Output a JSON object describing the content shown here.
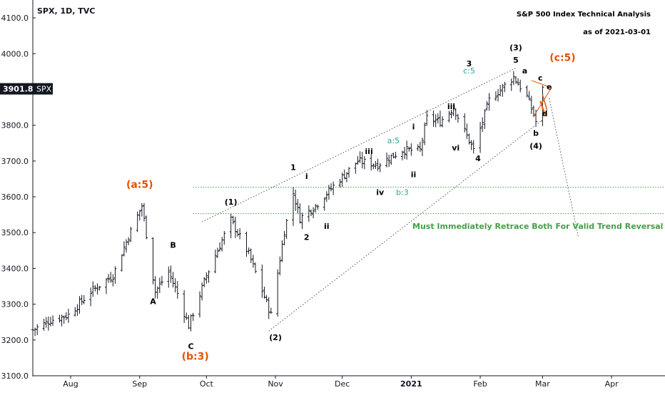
{
  "chart_data": {
    "type": "ohlc",
    "title": "S&P 500 Index Technical Analysis",
    "subtitle": "as of 2021-03-01",
    "symbol_header": "SPX, 1D, TVC",
    "price_badge": {
      "value": "3901.8",
      "label": "SPX",
      "price": 3901.8
    },
    "y_axis": {
      "min": 3100,
      "max": 4150,
      "ticks": [
        "3100.0",
        "3200.0",
        "3300.0",
        "3400.0",
        "3500.0",
        "3600.0",
        "3700.0",
        "3800.0",
        "3900.0",
        "4000.0",
        "4100.0"
      ]
    },
    "x_axis": {
      "start": "2020-07-15",
      "end": "2021-04-25",
      "ticks": [
        {
          "label": "Aug",
          "date": "2020-08-01"
        },
        {
          "label": "Sep",
          "date": "2020-09-01"
        },
        {
          "label": "Oct",
          "date": "2020-10-01"
        },
        {
          "label": "Nov",
          "date": "2020-11-01"
        },
        {
          "label": "Dec",
          "date": "2020-12-01"
        },
        {
          "label": "2021",
          "date": "2021-01-01"
        },
        {
          "label": "Feb",
          "date": "2021-02-01"
        },
        {
          "label": "Mar",
          "date": "2021-03-01"
        },
        {
          "label": "Apr",
          "date": "2021-04-01"
        }
      ]
    },
    "anchors": [
      [
        "2020-07-15",
        3228
      ],
      [
        "2020-07-23",
        3255
      ],
      [
        "2020-07-31",
        3270
      ],
      [
        "2020-08-10",
        3335
      ],
      [
        "2020-08-20",
        3380
      ],
      [
        "2020-08-27",
        3490
      ],
      [
        "2020-09-02",
        3575
      ],
      [
        "2020-09-08",
        3335
      ],
      [
        "2020-09-14",
        3390
      ],
      [
        "2020-09-18",
        3330
      ],
      [
        "2020-09-23",
        3240
      ],
      [
        "2020-10-01",
        3380
      ],
      [
        "2020-10-12",
        3535
      ],
      [
        "2020-10-20",
        3440
      ],
      [
        "2020-10-30",
        3270
      ],
      [
        "2020-11-05",
        3505
      ],
      [
        "2020-11-09",
        3610
      ],
      [
        "2020-11-12",
        3540
      ],
      [
        "2020-11-19",
        3575
      ],
      [
        "2020-11-27",
        3630
      ],
      [
        "2020-12-08",
        3700
      ],
      [
        "2020-12-17",
        3690
      ],
      [
        "2020-12-28",
        3730
      ],
      [
        "2021-01-05",
        3730
      ],
      [
        "2021-01-08",
        3820
      ],
      [
        "2021-01-14",
        3810
      ],
      [
        "2021-01-20",
        3850
      ],
      [
        "2021-01-29",
        3730
      ],
      [
        "2021-02-05",
        3870
      ],
      [
        "2021-02-16",
        3935
      ],
      [
        "2021-02-22",
        3880
      ],
      [
        "2021-02-25",
        3830
      ],
      [
        "2021-02-26",
        3810
      ],
      [
        "2021-03-01",
        3900
      ]
    ],
    "trendlines": [
      {
        "from": [
          "2020-09-29",
          3530
        ],
        "to": [
          "2021-02-17",
          3960
        ],
        "style": "dotted",
        "color": "#555555"
      },
      {
        "from": [
          "2020-10-29",
          3225
        ],
        "to": [
          "2021-03-01",
          3815
        ],
        "style": "dotted",
        "color": "#555555"
      },
      {
        "from": [
          "2021-03-04",
          3875
        ],
        "to": [
          "2021-03-17",
          3490
        ],
        "style": "dotted",
        "color": "#555555"
      }
    ],
    "hlines": [
      {
        "y": 3627,
        "from": "2020-09-25",
        "to": "2021-04-25",
        "color": "#43a047"
      },
      {
        "y": 3553,
        "from": "2020-09-25",
        "to": "2021-04-25",
        "color": "#43a047"
      }
    ],
    "annotations": [
      {
        "text": "(a:5)",
        "date": "2020-09-01",
        "price": 3625,
        "style": "orange"
      },
      {
        "text": "(b:3)",
        "date": "2020-09-26",
        "price": 3145,
        "style": "orange"
      },
      {
        "text": "(c:5)",
        "date": "2021-03-10",
        "price": 3980,
        "style": "orange"
      },
      {
        "text": "B",
        "date": "2020-09-16",
        "price": 3458,
        "style": "black"
      },
      {
        "text": "A",
        "date": "2020-09-07",
        "price": 3300,
        "style": "black"
      },
      {
        "text": "C",
        "date": "2020-09-24",
        "price": 3175,
        "style": "black"
      },
      {
        "text": "(1)",
        "date": "2020-10-12",
        "price": 3578,
        "style": "black"
      },
      {
        "text": "(2)",
        "date": "2020-11-01",
        "price": 3200,
        "style": "black"
      },
      {
        "text": "1",
        "date": "2020-11-09",
        "price": 3675,
        "style": "black"
      },
      {
        "text": "i",
        "date": "2020-11-15",
        "price": 3650,
        "style": "black"
      },
      {
        "text": "2",
        "date": "2020-11-15",
        "price": 3480,
        "style": "black"
      },
      {
        "text": "ii",
        "date": "2020-11-24",
        "price": 3510,
        "style": "black"
      },
      {
        "text": "iii",
        "date": "2020-12-13",
        "price": 3720,
        "style": "black"
      },
      {
        "text": "iv",
        "date": "2020-12-18",
        "price": 3605,
        "style": "black"
      },
      {
        "text": "a:5",
        "date": "2020-12-24",
        "price": 3750,
        "style": "teal"
      },
      {
        "text": "b:3",
        "date": "2020-12-28",
        "price": 3605,
        "style": "teal"
      },
      {
        "text": "i",
        "date": "2021-01-02",
        "price": 3788,
        "style": "black"
      },
      {
        "text": "ii",
        "date": "2021-01-02",
        "price": 3655,
        "style": "black"
      },
      {
        "text": "iii",
        "date": "2021-01-19",
        "price": 3845,
        "style": "black"
      },
      {
        "text": "vi",
        "date": "2021-01-21",
        "price": 3730,
        "style": "black"
      },
      {
        "text": "3",
        "date": "2021-01-27",
        "price": 3965,
        "style": "black"
      },
      {
        "text": "c:5",
        "date": "2021-01-27",
        "price": 3945,
        "style": "teal"
      },
      {
        "text": "4",
        "date": "2021-01-31",
        "price": 3700,
        "style": "black"
      },
      {
        "text": "(3)",
        "date": "2021-02-17",
        "price": 4010,
        "style": "black"
      },
      {
        "text": "5",
        "date": "2021-02-17",
        "price": 3975,
        "style": "black"
      },
      {
        "text": "a",
        "date": "2021-02-21",
        "price": 3945,
        "style": "black"
      },
      {
        "text": "c",
        "date": "2021-02-28",
        "price": 3925,
        "style": "black"
      },
      {
        "text": "b",
        "date": "2021-02-26",
        "price": 3770,
        "style": "black"
      },
      {
        "text": "(4)",
        "date": "2021-02-26",
        "price": 3735,
        "style": "black"
      },
      {
        "text": "e",
        "date": "2021-03-04",
        "price": 3900,
        "style": "orange-small"
      },
      {
        "text": "d",
        "date": "2021-03-02",
        "price": 3825,
        "style": "orange-small"
      },
      {
        "text": "Must Immediately Retrace Both",
        "date": "2021-02-02",
        "price": 3510,
        "style": "green"
      },
      {
        "text": "For Valid Trend Reversal",
        "date": "2021-03-31",
        "price": 3510,
        "style": "green"
      }
    ]
  }
}
